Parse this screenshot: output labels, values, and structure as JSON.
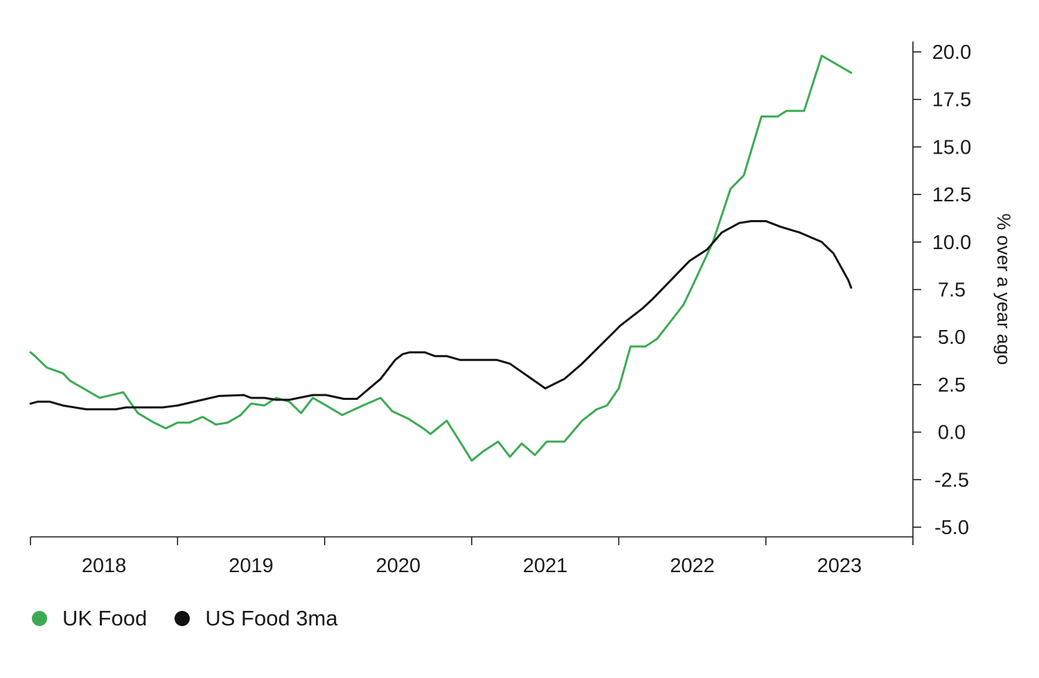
{
  "chart_data": {
    "type": "line",
    "title": "",
    "xlabel": "",
    "ylabel": "% over a year ago",
    "y_axis_side": "right",
    "ylim": [
      -5.0,
      20.0
    ],
    "yticks": [
      "20.0",
      "17.5",
      "15.0",
      "12.5",
      "10.0",
      "7.5",
      "5.0",
      "2.5",
      "0.0",
      "-2.5",
      "-5.0"
    ],
    "ytick_values": [
      20,
      17.5,
      15,
      12.5,
      10,
      7.5,
      5,
      2.5,
      0,
      -2.5,
      -5
    ],
    "xlim": [
      2017.5,
      2023.5
    ],
    "xtick_boundaries": [
      2017.5,
      2018.5,
      2019.5,
      2020.5,
      2021.5,
      2022.5,
      2023.5
    ],
    "xtick_labels": [
      {
        "label": "2018",
        "x": 2018.0
      },
      {
        "label": "2019",
        "x": 2019.0
      },
      {
        "label": "2020",
        "x": 2020.0
      },
      {
        "label": "2021",
        "x": 2021.0
      },
      {
        "label": "2022",
        "x": 2022.0
      },
      {
        "label": "2023",
        "x": 2023.0
      }
    ],
    "grid": false,
    "legend_position": "bottom-left",
    "series": [
      {
        "name": "UK Food",
        "color": "#3bab52",
        "points": [
          [
            2017.5,
            4.2
          ],
          [
            2017.53,
            4.0
          ],
          [
            2017.61,
            3.4
          ],
          [
            2017.72,
            3.1
          ],
          [
            2017.77,
            2.7
          ],
          [
            2017.86,
            2.3
          ],
          [
            2017.97,
            1.8
          ],
          [
            2018.08,
            2.0
          ],
          [
            2018.13,
            2.1
          ],
          [
            2018.23,
            1.0
          ],
          [
            2018.34,
            0.5
          ],
          [
            2018.42,
            0.2
          ],
          [
            2018.5,
            0.5
          ],
          [
            2018.58,
            0.5
          ],
          [
            2018.67,
            0.8
          ],
          [
            2018.76,
            0.4
          ],
          [
            2018.84,
            0.5
          ],
          [
            2018.93,
            0.9
          ],
          [
            2019.0,
            1.5
          ],
          [
            2019.09,
            1.4
          ],
          [
            2019.17,
            1.8
          ],
          [
            2019.26,
            1.6
          ],
          [
            2019.34,
            1.0
          ],
          [
            2019.42,
            1.8
          ],
          [
            2019.51,
            1.4
          ],
          [
            2019.62,
            0.9
          ],
          [
            2019.76,
            1.4
          ],
          [
            2019.88,
            1.8
          ],
          [
            2019.96,
            1.1
          ],
          [
            2020.07,
            0.7
          ],
          [
            2020.17,
            0.2
          ],
          [
            2020.22,
            -0.1
          ],
          [
            2020.33,
            0.6
          ],
          [
            2020.42,
            -0.5
          ],
          [
            2020.5,
            -1.5
          ],
          [
            2020.58,
            -1.0
          ],
          [
            2020.68,
            -0.5
          ],
          [
            2020.76,
            -1.3
          ],
          [
            2020.84,
            -0.6
          ],
          [
            2020.93,
            -1.2
          ],
          [
            2021.01,
            -0.5
          ],
          [
            2021.13,
            -0.5
          ],
          [
            2021.25,
            0.6
          ],
          [
            2021.35,
            1.2
          ],
          [
            2021.42,
            1.4
          ],
          [
            2021.5,
            2.3
          ],
          [
            2021.58,
            4.5
          ],
          [
            2021.68,
            4.5
          ],
          [
            2021.76,
            4.9
          ],
          [
            2021.84,
            5.7
          ],
          [
            2021.94,
            6.7
          ],
          [
            2022.02,
            8.0
          ],
          [
            2022.14,
            10.0
          ],
          [
            2022.26,
            12.8
          ],
          [
            2022.35,
            13.5
          ],
          [
            2022.47,
            16.6
          ],
          [
            2022.58,
            16.6
          ],
          [
            2022.64,
            16.9
          ],
          [
            2022.76,
            16.9
          ],
          [
            2022.88,
            19.8
          ],
          [
            2023.08,
            18.9
          ]
        ]
      },
      {
        "name": "US Food 3ma",
        "color": "#111111",
        "points": [
          [
            2017.5,
            1.5
          ],
          [
            2017.55,
            1.6
          ],
          [
            2017.63,
            1.6
          ],
          [
            2017.72,
            1.4
          ],
          [
            2017.88,
            1.2
          ],
          [
            2018.08,
            1.2
          ],
          [
            2018.15,
            1.3
          ],
          [
            2018.25,
            1.3
          ],
          [
            2018.4,
            1.3
          ],
          [
            2018.5,
            1.4
          ],
          [
            2018.67,
            1.7
          ],
          [
            2018.78,
            1.9
          ],
          [
            2018.95,
            1.95
          ],
          [
            2019.0,
            1.8
          ],
          [
            2019.09,
            1.8
          ],
          [
            2019.17,
            1.7
          ],
          [
            2019.26,
            1.7
          ],
          [
            2019.42,
            1.95
          ],
          [
            2019.51,
            1.95
          ],
          [
            2019.63,
            1.75
          ],
          [
            2019.72,
            1.75
          ],
          [
            2019.88,
            2.8
          ],
          [
            2019.98,
            3.8
          ],
          [
            2020.03,
            4.1
          ],
          [
            2020.08,
            4.2
          ],
          [
            2020.18,
            4.2
          ],
          [
            2020.25,
            4.0
          ],
          [
            2020.33,
            4.0
          ],
          [
            2020.42,
            3.8
          ],
          [
            2020.67,
            3.8
          ],
          [
            2020.76,
            3.6
          ],
          [
            2021.0,
            2.3
          ],
          [
            2021.13,
            2.8
          ],
          [
            2021.25,
            3.6
          ],
          [
            2021.38,
            4.6
          ],
          [
            2021.51,
            5.6
          ],
          [
            2021.66,
            6.5
          ],
          [
            2021.73,
            7.0
          ],
          [
            2021.98,
            9.0
          ],
          [
            2022.1,
            9.6
          ],
          [
            2022.2,
            10.5
          ],
          [
            2022.32,
            11.0
          ],
          [
            2022.4,
            11.1
          ],
          [
            2022.5,
            11.1
          ],
          [
            2022.6,
            10.8
          ],
          [
            2022.73,
            10.5
          ],
          [
            2022.88,
            10.0
          ],
          [
            2022.96,
            9.4
          ],
          [
            2023.06,
            8.0
          ],
          [
            2023.08,
            7.6
          ]
        ]
      }
    ]
  }
}
